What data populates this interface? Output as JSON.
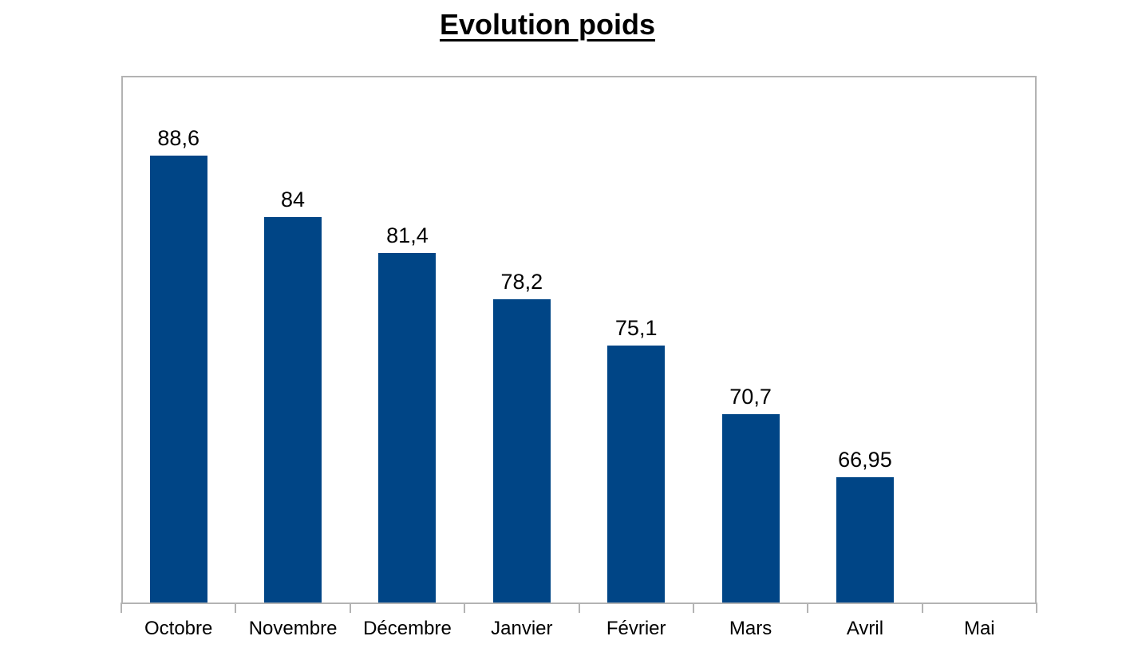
{
  "chart_data": {
    "type": "bar",
    "title": "Evolution poids",
    "categories": [
      "Octobre",
      "Novembre",
      "Décembre",
      "Janvier",
      "Février",
      "Mars",
      "Avril",
      "Mai"
    ],
    "values": [
      88.6,
      84,
      81.4,
      78.2,
      75.1,
      70.7,
      66.95,
      null
    ],
    "data_labels": [
      "88,6",
      "84",
      "81,4",
      "78,2",
      "75,1",
      "70,7",
      "66,95",
      ""
    ],
    "series_name": "poids",
    "xlabel": "",
    "ylabel": "",
    "ylim": [
      60,
      95
    ],
    "y_scale": "log",
    "grid": false,
    "legend": false,
    "colors": {
      "bar": "#004586",
      "axis": "#b3b3b3",
      "text": "#000000",
      "background": "#ffffff"
    }
  }
}
